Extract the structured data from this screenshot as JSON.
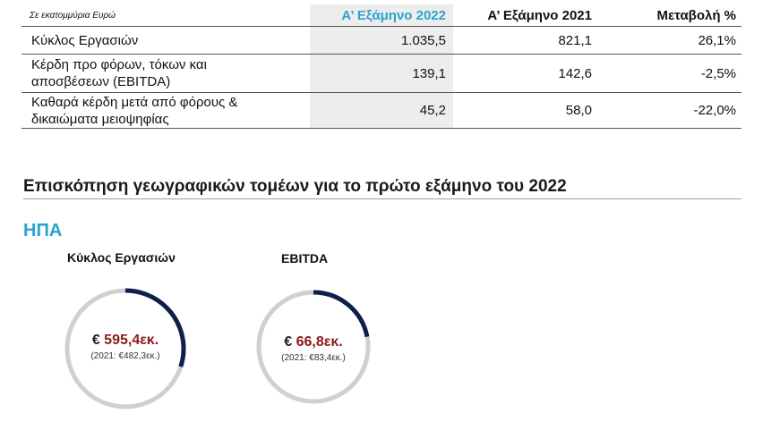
{
  "table": {
    "header": {
      "unit_note": "Σε εκατομμύρια Ευρώ",
      "col1": "Α’ Εξάμηνο 2022",
      "col2": "Α’ Εξάμηνο 2021",
      "col3": "Μεταβολή %"
    },
    "rows": [
      {
        "label": "Κύκλος Εργασιών",
        "v2022": "1.035,5",
        "v2021": "821,1",
        "change": "26,1%"
      },
      {
        "label_line1": "Κέρδη προ φόρων, τόκων και",
        "label_line2": "αποσβέσεων (EBITDA)",
        "v2022": "139,1",
        "v2021": "142,6",
        "change": "-2,5%"
      },
      {
        "label_line1": "Καθαρά κέρδη μετά από φόρους &",
        "label_line2": "δικαιώματα μειοψηφίας",
        "v2022": "45,2",
        "v2021": "58,0",
        "change": "-22,0%"
      }
    ]
  },
  "section_title": "Επισκόπηση γεωγραφικών τομέων για το πρώτο εξάμηνο του 2022",
  "region": "ΗΠΑ",
  "donuts": [
    {
      "label": "Κύκλος Εργασιών",
      "currency": "€",
      "value": "595,4εκ.",
      "prev": "(2021: €482,3εκ.)",
      "share": 0.3
    },
    {
      "label": "EBITDA",
      "currency": "€",
      "value": "66,8εκ.",
      "prev": "(2021: €83,4εκ.)",
      "share": 0.22
    }
  ],
  "colors": {
    "accent": "#2aa3cf",
    "ring_fill": "#0d1f4a",
    "ring_track": "#d0d0d0",
    "value_red": "#8b1a1a"
  }
}
